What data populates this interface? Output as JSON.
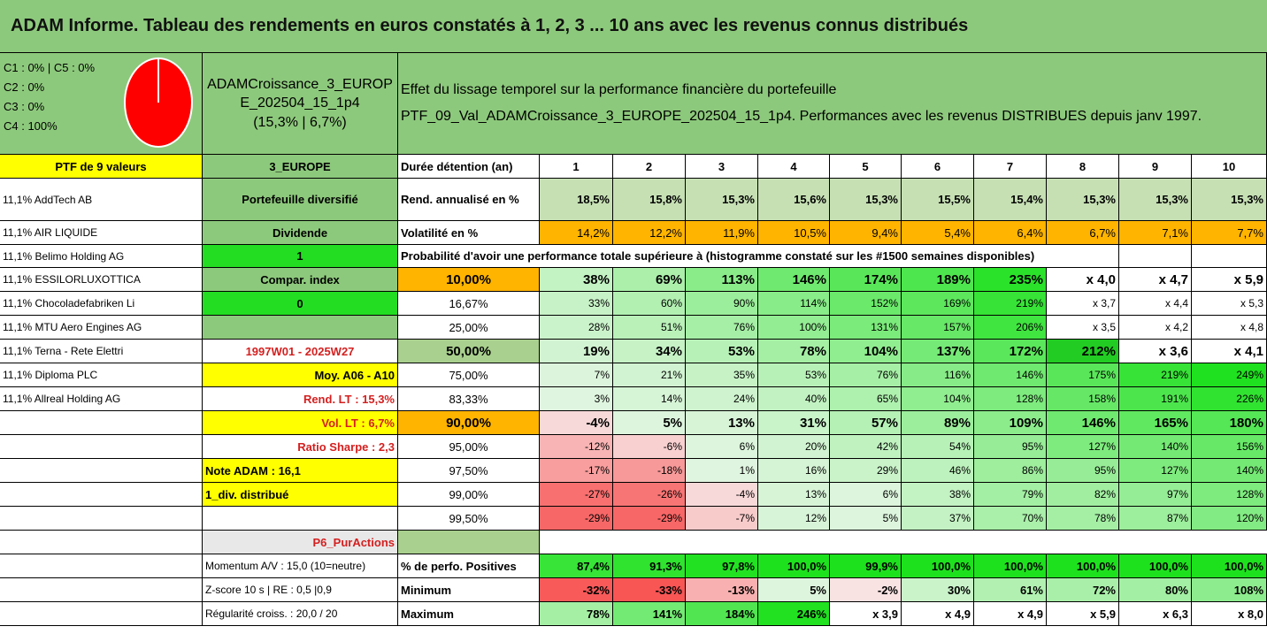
{
  "title": "ADAM Informe. Tableau des rendements en euros constatés à 1, 2, 3 ... 10 ans avec les revenus connus distribués",
  "classes": [
    "C1 : 0% | C5 : 0%",
    "C2 : 0%",
    "C3 : 0%",
    "C4 : 100%"
  ],
  "pie_color": "#ff0000",
  "portfolio": {
    "name_line1": "ADAMCroissance_3_EUROP",
    "name_line2": "E_202504_15_1p4",
    "summary": "(15,3% | 6,7%)",
    "effect_line1": "Effet du lissage temporel sur la performance financière du portefeuille",
    "effect_line2": "PTF_09_Val_ADAMCroissance_3_EUROPE_202504_15_1p4. Performances avec les revenus DISTRIBUES depuis janv 1997.",
    "count_label": "PTF de 9 valeurs",
    "zone": "3_EUROPE"
  },
  "holdings": [
    "11,1% AddTech AB",
    "11,1% AIR LIQUIDE",
    "11,1% Belimo Holding AG",
    "11,1% ESSILORLUXOTTICA",
    "11,1% Chocoladefabriken Li",
    "11,1% MTU Aero Engines AG",
    "11,1% Terna - Rete Elettri",
    "11,1% Diploma PLC",
    "11,1% Allreal Holding AG"
  ],
  "info": {
    "diversified": "Portefeuille diversifié",
    "dividend_label": "Dividende",
    "dividend_value": "1",
    "compar_label": "Compar. index",
    "compar_value": "0",
    "period": "1997W01 - 2025W27",
    "moy": "Moy. A06 - A10",
    "rend_lt": "Rend. LT : 15,3%",
    "vol_lt": "Vol. LT : 6,7%",
    "sharpe": "Ratio Sharpe : 2,3",
    "note": "Note ADAM : 16,1",
    "div_distrib": "1_div. distribué",
    "p6": "P6_PurActions",
    "momentum": "Momentum A/V : 15,0 (10=neutre)",
    "zscore": "Z-score 10 s | RE : 0,5 |0,9",
    "regularite": "Régularité croiss. : 20,0 / 20"
  },
  "table": {
    "duration_label": "Durée détention (an)",
    "years": [
      "1",
      "2",
      "3",
      "4",
      "5",
      "6",
      "7",
      "8",
      "9",
      "10"
    ],
    "rend_label": "Rend. annualisé en %",
    "rend": [
      "18,5%",
      "15,8%",
      "15,3%",
      "15,6%",
      "15,3%",
      "15,5%",
      "15,4%",
      "15,3%",
      "15,3%",
      "15,3%"
    ],
    "vol_label": "Volatilité en %",
    "vol": [
      "14,2%",
      "12,2%",
      "11,9%",
      "10,5%",
      "9,4%",
      "5,4%",
      "6,4%",
      "6,7%",
      "7,1%",
      "7,7%"
    ],
    "prob_header": "Probabilité d'avoir une performance totale supérieure à (histogramme constaté sur les #1500 semaines disponibles)",
    "prob_rows": [
      {
        "p": "10,00%",
        "v": [
          "38%",
          "69%",
          "113%",
          "146%",
          "174%",
          "189%",
          "235%",
          "x 4,0",
          "x 4,7",
          "x 5,9"
        ]
      },
      {
        "p": "16,67%",
        "v": [
          "33%",
          "60%",
          "90%",
          "114%",
          "152%",
          "169%",
          "219%",
          "x 3,7",
          "x 4,4",
          "x 5,3"
        ]
      },
      {
        "p": "25,00%",
        "v": [
          "28%",
          "51%",
          "76%",
          "100%",
          "131%",
          "157%",
          "206%",
          "x 3,5",
          "x 4,2",
          "x 4,8"
        ]
      },
      {
        "p": "50,00%",
        "v": [
          "19%",
          "34%",
          "53%",
          "78%",
          "104%",
          "137%",
          "172%",
          "212%",
          "x 3,6",
          "x 4,1"
        ]
      },
      {
        "p": "75,00%",
        "v": [
          "7%",
          "21%",
          "35%",
          "53%",
          "76%",
          "116%",
          "146%",
          "175%",
          "219%",
          "249%"
        ]
      },
      {
        "p": "83,33%",
        "v": [
          "3%",
          "14%",
          "24%",
          "40%",
          "65%",
          "104%",
          "128%",
          "158%",
          "191%",
          "226%"
        ]
      },
      {
        "p": "90,00%",
        "v": [
          "-4%",
          "5%",
          "13%",
          "31%",
          "57%",
          "89%",
          "109%",
          "146%",
          "165%",
          "180%"
        ]
      },
      {
        "p": "95,00%",
        "v": [
          "-12%",
          "-6%",
          "6%",
          "20%",
          "42%",
          "54%",
          "95%",
          "127%",
          "140%",
          "156%"
        ]
      },
      {
        "p": "97,50%",
        "v": [
          "-17%",
          "-18%",
          "1%",
          "16%",
          "29%",
          "46%",
          "86%",
          "95%",
          "127%",
          "140%"
        ]
      },
      {
        "p": "99,00%",
        "v": [
          "-27%",
          "-26%",
          "-4%",
          "13%",
          "6%",
          "38%",
          "79%",
          "82%",
          "97%",
          "128%"
        ]
      },
      {
        "p": "99,50%",
        "v": [
          "-29%",
          "-29%",
          "-7%",
          "12%",
          "5%",
          "37%",
          "70%",
          "78%",
          "87%",
          "120%"
        ]
      }
    ],
    "pos_label": "% de perfo. Positives",
    "pos": [
      "87,4%",
      "91,3%",
      "97,8%",
      "100,0%",
      "99,9%",
      "100,0%",
      "100,0%",
      "100,0%",
      "100,0%",
      "100,0%"
    ],
    "min_label": "Minimum",
    "min": [
      "-32%",
      "-33%",
      "-13%",
      "5%",
      "-2%",
      "30%",
      "61%",
      "72%",
      "80%",
      "108%"
    ],
    "max_label": "Maximum",
    "max": [
      "78%",
      "141%",
      "184%",
      "246%",
      "x 3,9",
      "x 4,9",
      "x 4,9",
      "x 5,9",
      "x 6,3",
      "x 8,0"
    ]
  },
  "colors": {
    "header_green": "#8dc97c",
    "yellow": "#ffff00",
    "bright_green": "#22dd22",
    "orange": "#ffb400",
    "pale_green": "#c6e0b4"
  }
}
